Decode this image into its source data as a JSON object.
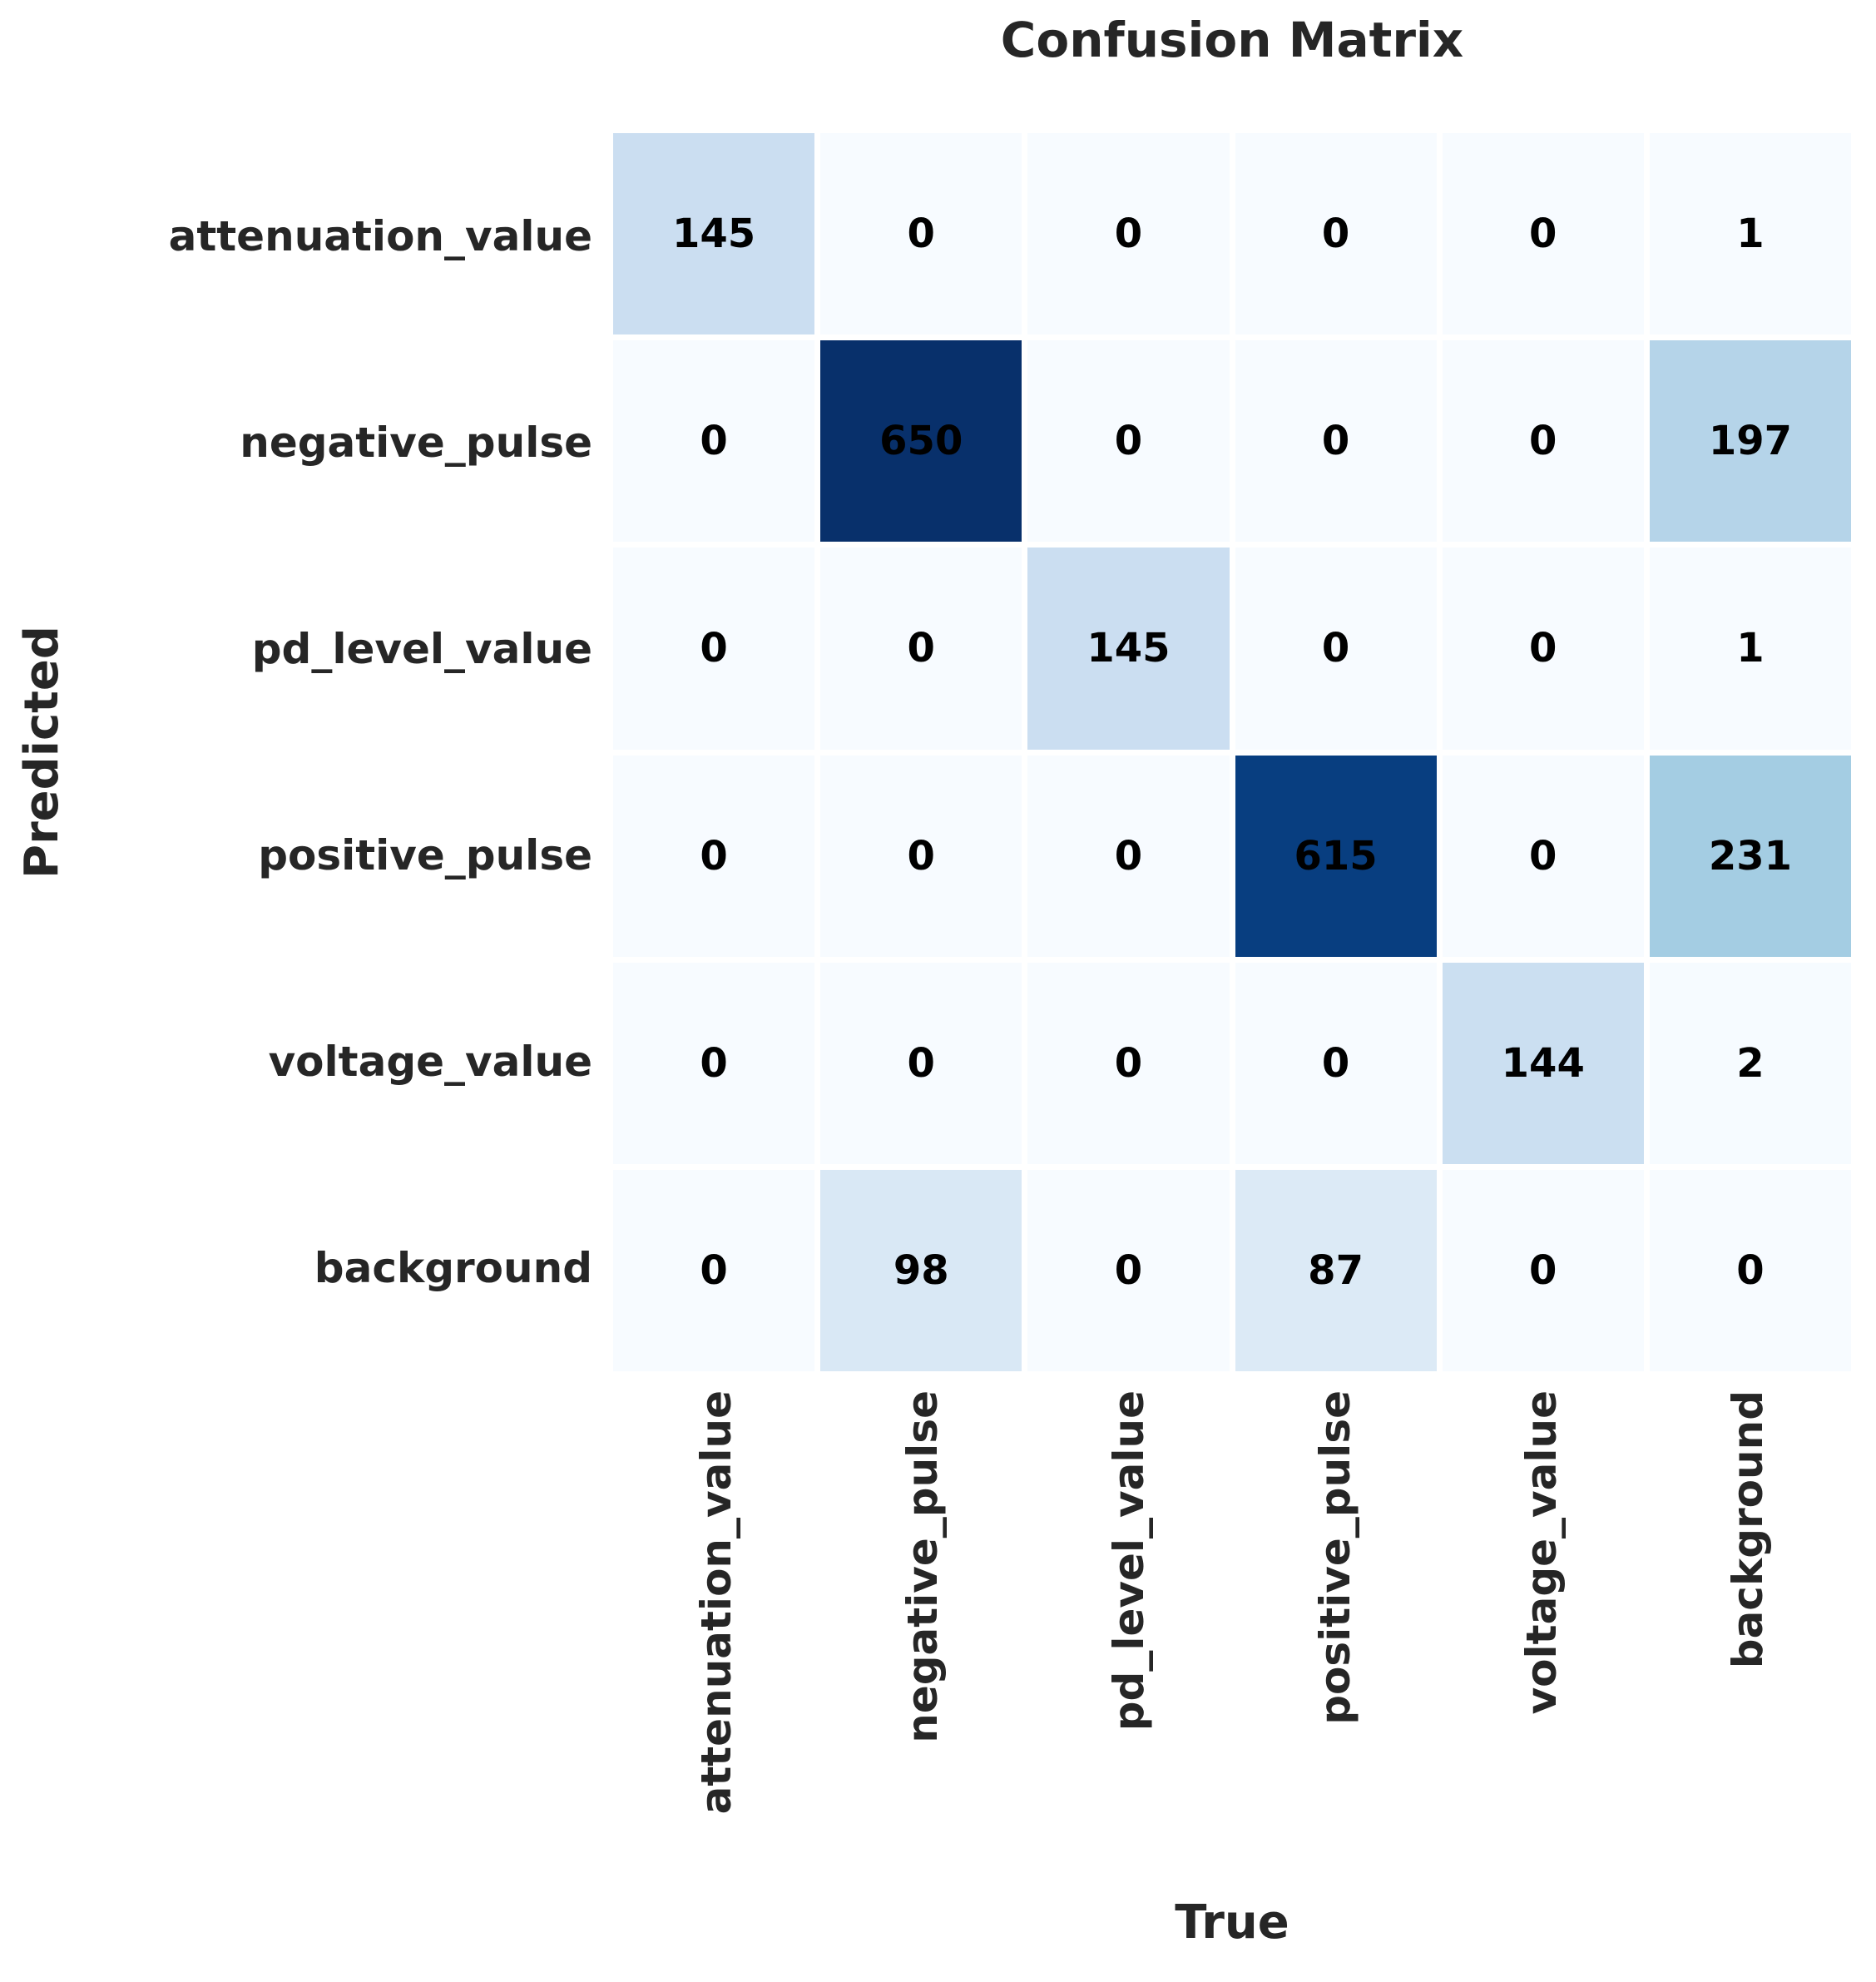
{
  "chart_data": {
    "type": "heatmap",
    "title": "Confusion Matrix",
    "xlabel": "True",
    "ylabel": "Predicted",
    "rows": [
      "attenuation_value",
      "negative_pulse",
      "pd_level_value",
      "positive_pulse",
      "voltage_value",
      "background"
    ],
    "columns": [
      "attenuation_value",
      "negative_pulse",
      "pd_level_value",
      "positive_pulse",
      "voltage_value",
      "background"
    ],
    "values": [
      [
        145,
        0,
        0,
        0,
        0,
        1
      ],
      [
        0,
        650,
        0,
        0,
        0,
        197
      ],
      [
        0,
        0,
        145,
        0,
        0,
        1
      ],
      [
        0,
        0,
        0,
        615,
        0,
        231
      ],
      [
        0,
        0,
        0,
        0,
        144,
        2
      ],
      [
        0,
        98,
        0,
        87,
        0,
        0
      ]
    ],
    "vmin": 0,
    "vmax": 650,
    "colormap": "Blues",
    "colormap_stops": [
      "#f7fbff",
      "#deebf7",
      "#c6dbef",
      "#9ecae1",
      "#6baed6",
      "#4292c6",
      "#2171b5",
      "#08519c",
      "#08306b"
    ],
    "annotation_color": "#000000",
    "grid_gap_color": "#ffffff",
    "legend": "none",
    "grid": "off"
  }
}
